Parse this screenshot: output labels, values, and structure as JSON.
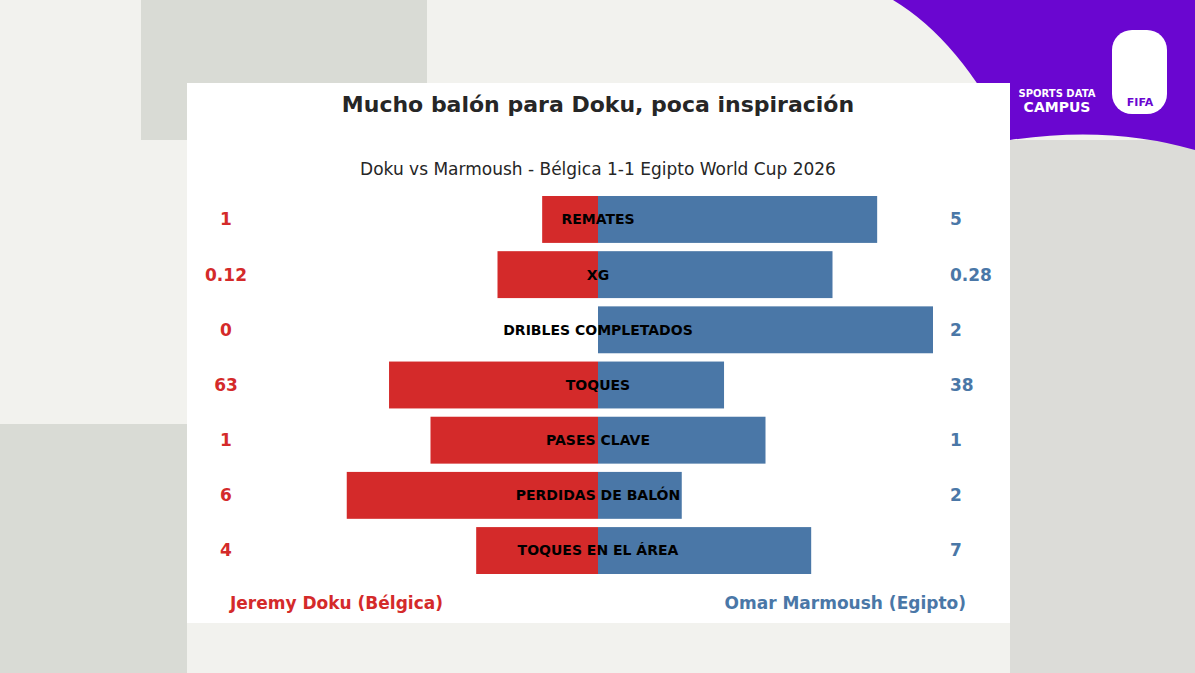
{
  "chart_data": {
    "type": "bar",
    "orientation": "horizontal",
    "title": "Mucho balón para Doku, poca inspiración",
    "subtitle": "Doku vs Marmoush - Bélgica 1-1 Egipto World Cup 2026",
    "categories": [
      "REMATES",
      "XG",
      "DRIBLES COMPLETADOS",
      "TOQUES",
      "PASES CLAVE",
      "PERDIDAS DE BALÓN",
      "TOQUES EN EL ÁREA"
    ],
    "series": [
      {
        "name": "Jeremy Doku (Bélgica)",
        "color": "#d42a2a",
        "values": [
          1,
          0.12,
          0,
          63,
          1,
          6,
          4
        ]
      },
      {
        "name": "Omar Marmoush (Egipto)",
        "color": "#4a77a7",
        "values": [
          5,
          0.28,
          2,
          38,
          1,
          2,
          7
        ]
      }
    ],
    "data_labels": true,
    "tick_labels": false
  },
  "branding": {
    "logo_lines": [
      "SPORTS DATA",
      "CAMPUS"
    ],
    "fifa": "FIFA"
  }
}
